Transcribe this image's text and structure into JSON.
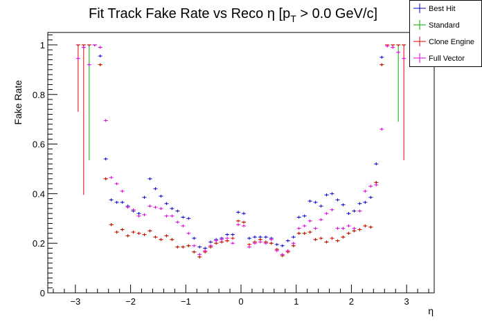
{
  "chart_data": {
    "type": "scatter",
    "title": "Fit Track Fake Rate vs Reco η [p",
    "title_sub": "T",
    "title_tail": " > 0.0 GeV/c]",
    "xlabel": "η",
    "ylabel": "Fake Rate",
    "xlim": [
      -3.5,
      3.5
    ],
    "ylim": [
      0,
      1.05
    ],
    "x_ticks": [
      -3,
      -2,
      -1,
      0,
      1,
      2,
      3
    ],
    "x_tick_labels": [
      "−3",
      "−2",
      "−1",
      "0",
      "1",
      "2",
      "3"
    ],
    "y_ticks": [
      0,
      0.2,
      0.4,
      0.6,
      0.8,
      1
    ],
    "y_tick_labels": [
      "0",
      "0.2",
      "0.4",
      "0.6",
      "0.8",
      "1"
    ],
    "bin_width": 0.1,
    "grid": false,
    "legend_position": "top-right",
    "series": [
      {
        "name": "Best Hit",
        "color": "#0000cc",
        "x": [
          -2.95,
          -2.85,
          -2.75,
          -2.65,
          -2.55,
          -2.45,
          -2.35,
          -2.25,
          -2.15,
          -2.05,
          -1.95,
          -1.85,
          -1.75,
          -1.65,
          -1.55,
          -1.45,
          -1.35,
          -1.25,
          -1.15,
          -1.05,
          -0.95,
          -0.85,
          -0.75,
          -0.65,
          -0.55,
          -0.45,
          -0.35,
          -0.25,
          -0.15,
          -0.05,
          0.05,
          0.15,
          0.25,
          0.35,
          0.45,
          0.55,
          0.65,
          0.75,
          0.85,
          0.95,
          1.05,
          1.15,
          1.25,
          1.35,
          1.45,
          1.55,
          1.65,
          1.75,
          1.85,
          1.95,
          2.05,
          2.15,
          2.25,
          2.35,
          2.45,
          2.55,
          2.65,
          2.75,
          2.85,
          2.95
        ],
        "y": [
          1.0,
          1.0,
          1.0,
          1.0,
          0.955,
          0.54,
          0.375,
          0.365,
          0.365,
          0.35,
          0.33,
          0.32,
          0.385,
          0.46,
          0.42,
          0.39,
          0.36,
          0.34,
          0.33,
          0.305,
          0.3,
          0.22,
          0.185,
          0.18,
          0.205,
          0.215,
          0.22,
          0.235,
          0.235,
          0.325,
          0.32,
          0.22,
          0.225,
          0.225,
          0.225,
          0.22,
          0.195,
          0.19,
          0.21,
          0.225,
          0.305,
          0.31,
          0.37,
          0.365,
          0.35,
          0.395,
          0.4,
          0.375,
          0.355,
          0.32,
          0.33,
          0.36,
          0.365,
          0.385,
          0.52,
          0.95,
          1.0,
          1.0,
          1.0,
          1.0
        ],
        "lo": [
          0.0,
          0.0,
          0.0,
          0.0,
          0.0,
          0.0,
          0.0,
          0.0,
          0.0,
          0.0,
          0.0,
          0.0,
          0.0,
          0.0,
          0.0,
          0.0,
          0.0,
          0.0,
          0.0,
          0.0,
          0.0,
          0.0,
          0.0,
          0.0,
          0.0,
          0.0,
          0.0,
          0.0,
          0.0,
          0.0,
          0.0,
          0.0,
          0.0,
          0.0,
          0.0,
          0.0,
          0.0,
          0.0,
          0.0,
          0.0,
          0.0,
          0.0,
          0.0,
          0.0,
          0.0,
          0.0,
          0.0,
          0.0,
          0.0,
          0.0,
          0.0,
          0.0,
          0.0,
          0.0,
          0.0,
          0.0,
          0.0,
          0.0,
          0.0,
          0.0
        ]
      },
      {
        "name": "Standard",
        "color": "#00aa00",
        "x": [
          -2.95,
          -2.85,
          -2.75,
          -2.65,
          -2.55,
          -2.45,
          -2.35,
          -2.25,
          -2.15,
          -2.05,
          -1.95,
          -1.85,
          -1.75,
          -1.65,
          -1.55,
          -1.45,
          -1.35,
          -1.25,
          -1.15,
          -1.05,
          -0.95,
          -0.85,
          -0.75,
          -0.65,
          -0.55,
          -0.45,
          -0.35,
          -0.25,
          -0.15,
          -0.05,
          0.05,
          0.15,
          0.25,
          0.35,
          0.45,
          0.55,
          0.65,
          0.75,
          0.85,
          0.95,
          1.05,
          1.15,
          1.25,
          1.35,
          1.45,
          1.55,
          1.65,
          1.75,
          1.85,
          1.95,
          2.05,
          2.15,
          2.25,
          2.35,
          2.45,
          2.55,
          2.65,
          2.75,
          2.85,
          2.95
        ],
        "y": [
          1.0,
          1.0,
          1.0,
          1.0,
          0.92,
          0.46,
          0.275,
          0.245,
          0.255,
          0.23,
          0.245,
          0.24,
          0.235,
          0.25,
          0.225,
          0.215,
          0.23,
          0.215,
          0.185,
          0.185,
          0.19,
          0.165,
          0.145,
          0.165,
          0.185,
          0.2,
          0.205,
          0.21,
          0.22,
          0.29,
          0.285,
          0.195,
          0.205,
          0.215,
          0.205,
          0.2,
          0.175,
          0.15,
          0.165,
          0.19,
          0.24,
          0.24,
          0.245,
          0.215,
          0.22,
          0.205,
          0.22,
          0.21,
          0.225,
          0.24,
          0.25,
          0.255,
          0.27,
          0.265,
          0.445,
          0.92,
          1.0,
          1.0,
          1.0,
          1.0
        ],
        "lo": [
          0.0,
          0.0,
          0.535,
          0.0,
          0.0,
          0.0,
          0.0,
          0.0,
          0.0,
          0.0,
          0.0,
          0.0,
          0.0,
          0.0,
          0.0,
          0.0,
          0.0,
          0.0,
          0.0,
          0.0,
          0.0,
          0.0,
          0.0,
          0.0,
          0.0,
          0.0,
          0.0,
          0.0,
          0.0,
          0.0,
          0.0,
          0.0,
          0.0,
          0.0,
          0.0,
          0.0,
          0.0,
          0.0,
          0.0,
          0.0,
          0.0,
          0.0,
          0.0,
          0.0,
          0.0,
          0.0,
          0.0,
          0.0,
          0.0,
          0.0,
          0.0,
          0.0,
          0.0,
          0.0,
          0.0,
          0.0,
          0.0,
          0.0,
          0.69,
          0.0
        ]
      },
      {
        "name": "Clone Engine",
        "color": "#dd0000",
        "x": [
          -2.95,
          -2.85,
          -2.75,
          -2.65,
          -2.55,
          -2.45,
          -2.35,
          -2.25,
          -2.15,
          -2.05,
          -1.95,
          -1.85,
          -1.75,
          -1.65,
          -1.55,
          -1.45,
          -1.35,
          -1.25,
          -1.15,
          -1.05,
          -0.95,
          -0.85,
          -0.75,
          -0.65,
          -0.55,
          -0.45,
          -0.35,
          -0.25,
          -0.15,
          -0.05,
          0.05,
          0.15,
          0.25,
          0.35,
          0.45,
          0.55,
          0.65,
          0.75,
          0.85,
          0.95,
          1.05,
          1.15,
          1.25,
          1.35,
          1.45,
          1.55,
          1.65,
          1.75,
          1.85,
          1.95,
          2.05,
          2.15,
          2.25,
          2.35,
          2.45,
          2.55,
          2.65,
          2.75,
          2.85,
          2.95
        ],
        "y": [
          1.0,
          1.0,
          1.0,
          1.0,
          0.92,
          0.46,
          0.275,
          0.245,
          0.255,
          0.23,
          0.245,
          0.24,
          0.235,
          0.25,
          0.225,
          0.215,
          0.23,
          0.215,
          0.185,
          0.185,
          0.19,
          0.165,
          0.145,
          0.165,
          0.185,
          0.2,
          0.205,
          0.21,
          0.22,
          0.29,
          0.285,
          0.195,
          0.205,
          0.215,
          0.205,
          0.2,
          0.175,
          0.15,
          0.165,
          0.19,
          0.24,
          0.24,
          0.245,
          0.215,
          0.22,
          0.205,
          0.22,
          0.21,
          0.225,
          0.24,
          0.25,
          0.255,
          0.27,
          0.265,
          0.445,
          0.92,
          1.0,
          1.0,
          1.0,
          1.0
        ],
        "lo": [
          0.73,
          0.395,
          0.0,
          0.0,
          0.0,
          0.0,
          0.0,
          0.0,
          0.0,
          0.0,
          0.0,
          0.0,
          0.0,
          0.0,
          0.0,
          0.0,
          0.0,
          0.0,
          0.0,
          0.0,
          0.0,
          0.0,
          0.0,
          0.0,
          0.0,
          0.0,
          0.0,
          0.0,
          0.0,
          0.0,
          0.0,
          0.0,
          0.0,
          0.0,
          0.0,
          0.0,
          0.0,
          0.0,
          0.0,
          0.0,
          0.0,
          0.0,
          0.0,
          0.0,
          0.0,
          0.0,
          0.0,
          0.0,
          0.0,
          0.0,
          0.0,
          0.0,
          0.0,
          0.0,
          0.0,
          0.0,
          0.0,
          0.0,
          0.0,
          0.535
        ]
      },
      {
        "name": "Full Vector",
        "color": "#dd00dd",
        "x": [
          -2.95,
          -2.85,
          -2.75,
          -2.65,
          -2.55,
          -2.45,
          -2.35,
          -2.25,
          -2.15,
          -2.05,
          -1.95,
          -1.85,
          -1.75,
          -1.65,
          -1.55,
          -1.45,
          -1.35,
          -1.25,
          -1.15,
          -1.05,
          -0.95,
          -0.85,
          -0.75,
          -0.65,
          -0.55,
          -0.45,
          -0.35,
          -0.25,
          -0.15,
          -0.05,
          0.05,
          0.15,
          0.25,
          0.35,
          0.45,
          0.55,
          0.65,
          0.75,
          0.85,
          0.95,
          1.05,
          1.15,
          1.25,
          1.35,
          1.45,
          1.55,
          1.65,
          1.75,
          1.85,
          1.95,
          2.05,
          2.15,
          2.25,
          2.35,
          2.45,
          2.55,
          2.65,
          2.75,
          2.85,
          2.95
        ],
        "y": [
          0.945,
          0.99,
          0.92,
          1.0,
          0.99,
          0.695,
          0.465,
          0.44,
          0.41,
          0.345,
          0.335,
          0.31,
          0.315,
          0.35,
          0.345,
          0.34,
          0.31,
          0.31,
          0.285,
          0.27,
          0.24,
          0.19,
          0.155,
          0.17,
          0.19,
          0.21,
          0.215,
          0.22,
          0.2,
          0.275,
          0.27,
          0.185,
          0.2,
          0.205,
          0.2,
          0.215,
          0.17,
          0.155,
          0.17,
          0.2,
          0.26,
          0.27,
          0.29,
          0.26,
          0.295,
          0.32,
          0.335,
          0.26,
          0.26,
          0.27,
          0.26,
          0.33,
          0.41,
          0.43,
          0.435,
          0.66,
          0.995,
          0.99,
          0.97,
          0.945
        ],
        "lo": [
          0.0,
          0.0,
          0.0,
          0.0,
          0.0,
          0.0,
          0.0,
          0.0,
          0.0,
          0.0,
          0.0,
          0.0,
          0.0,
          0.0,
          0.0,
          0.0,
          0.0,
          0.0,
          0.0,
          0.0,
          0.0,
          0.0,
          0.0,
          0.0,
          0.0,
          0.0,
          0.0,
          0.0,
          0.0,
          0.0,
          0.0,
          0.0,
          0.0,
          0.0,
          0.0,
          0.0,
          0.0,
          0.0,
          0.0,
          0.0,
          0.0,
          0.0,
          0.0,
          0.0,
          0.0,
          0.0,
          0.0,
          0.0,
          0.0,
          0.0,
          0.0,
          0.0,
          0.0,
          0.0,
          0.0,
          0.0,
          0.0,
          0.0,
          0.0,
          0.0
        ]
      }
    ]
  }
}
